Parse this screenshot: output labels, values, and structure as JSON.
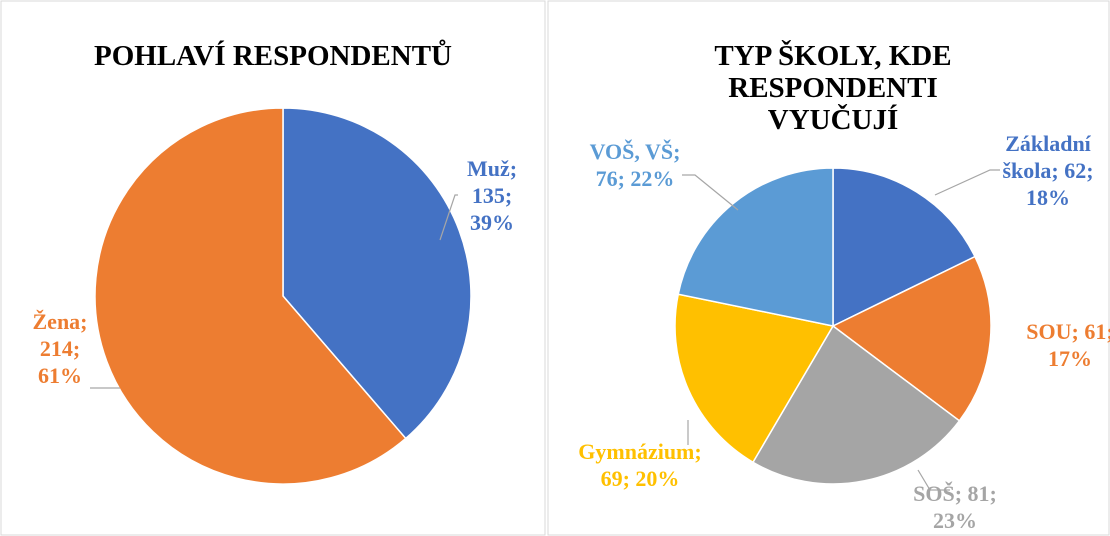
{
  "chart_data": [
    {
      "type": "pie",
      "title": "POHLAVÍ RESPONDENTŮ",
      "categories": [
        "Muž",
        "Žena"
      ],
      "values": [
        135,
        214
      ],
      "value_labels": [
        "Muž; 135; 39%",
        "Žena; 214; 61%"
      ],
      "colors": [
        "#4472c4",
        "#ed7d31"
      ]
    },
    {
      "type": "pie",
      "title": "TYP ŠKOLY, KDE RESPONDENTI VYUČUJÍ",
      "categories": [
        "Základní škola",
        "SOU",
        "SOŠ",
        "Gymnázium",
        "VOŠ, VŠ"
      ],
      "values": [
        62,
        61,
        81,
        69,
        76
      ],
      "value_labels": [
        "Základní škola; 62; 18%",
        "SOU; 61; 17%",
        "SOŠ; 81; 23%",
        "Gymnázium; 69; 20%",
        "VOŠ, VŠ; 76; 22%"
      ],
      "colors": [
        "#4472c4",
        "#ed7d31",
        "#a5a5a5",
        "#ffc000",
        "#5b9bd5"
      ]
    }
  ]
}
